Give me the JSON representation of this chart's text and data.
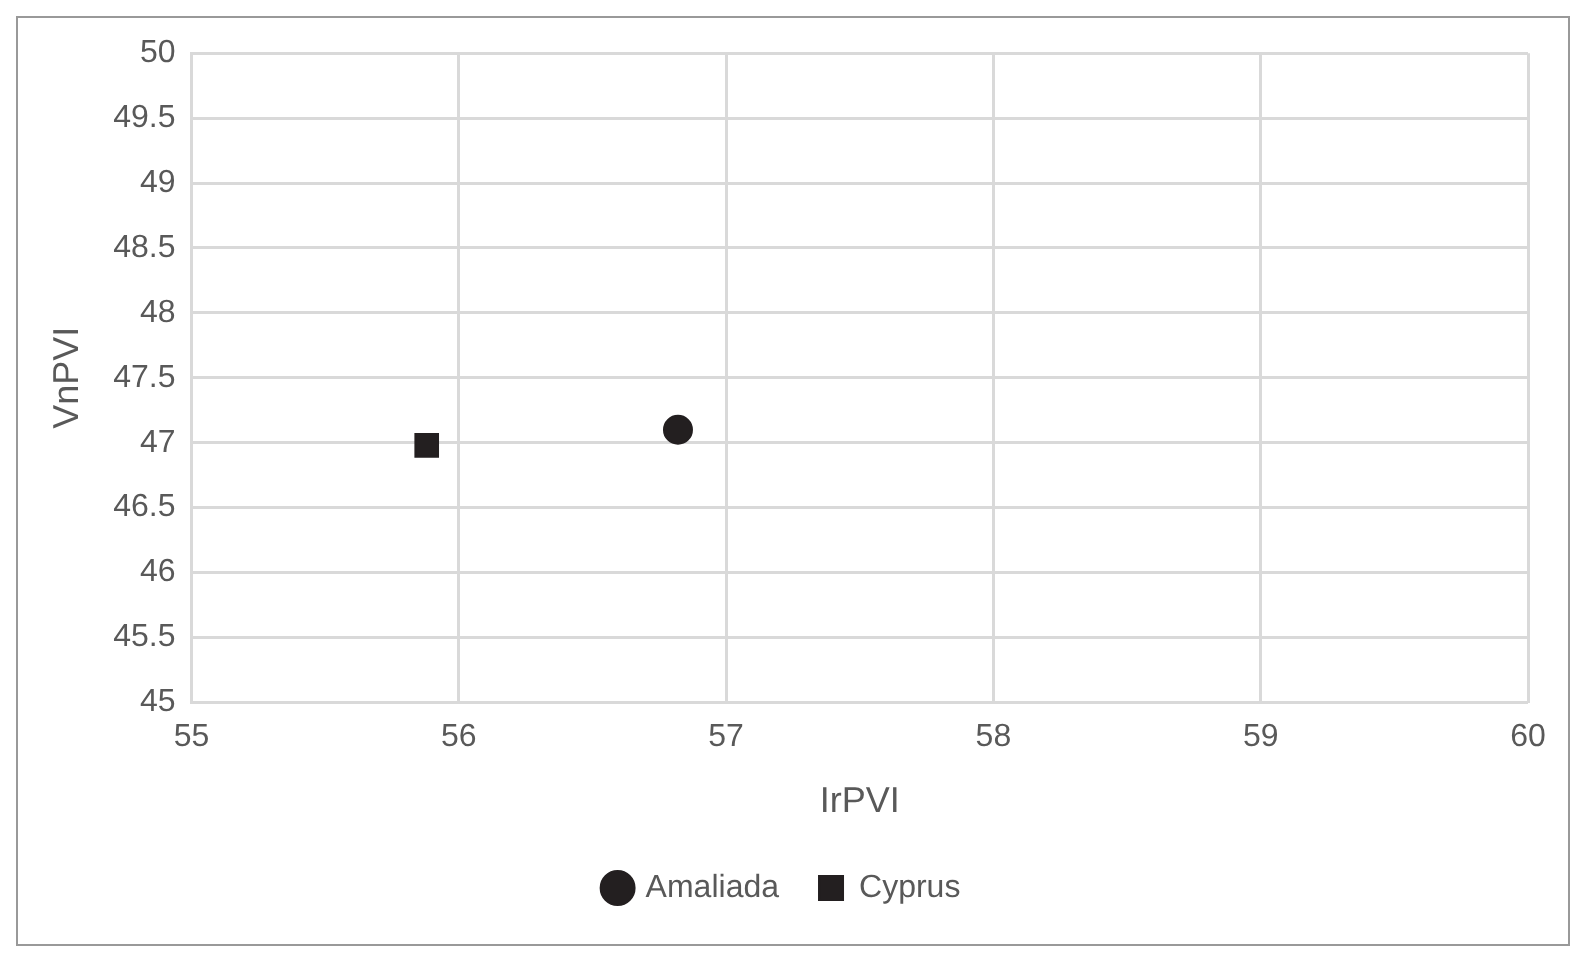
{
  "chart_data": {
    "type": "scatter",
    "xlabel": "IrPVI",
    "ylabel": "VnPVI",
    "xlim": [
      55,
      60
    ],
    "xticks": [
      55,
      56,
      57,
      58,
      59,
      60
    ],
    "ylim": [
      45,
      50
    ],
    "yticks": [
      45,
      45.5,
      46,
      46.5,
      47,
      47.5,
      48,
      48.5,
      49,
      49.5,
      50
    ],
    "grid": true,
    "legend": "bottom",
    "series": [
      {
        "name": "Amaliada",
        "color": "#231f20",
        "marker": "circle",
        "x": [
          56.82
        ],
        "values": [
          47.1
        ]
      },
      {
        "name": "Cyprus",
        "color": "#231f20",
        "marker": "square",
        "x": [
          55.88
        ],
        "values": [
          46.98
        ]
      }
    ]
  }
}
